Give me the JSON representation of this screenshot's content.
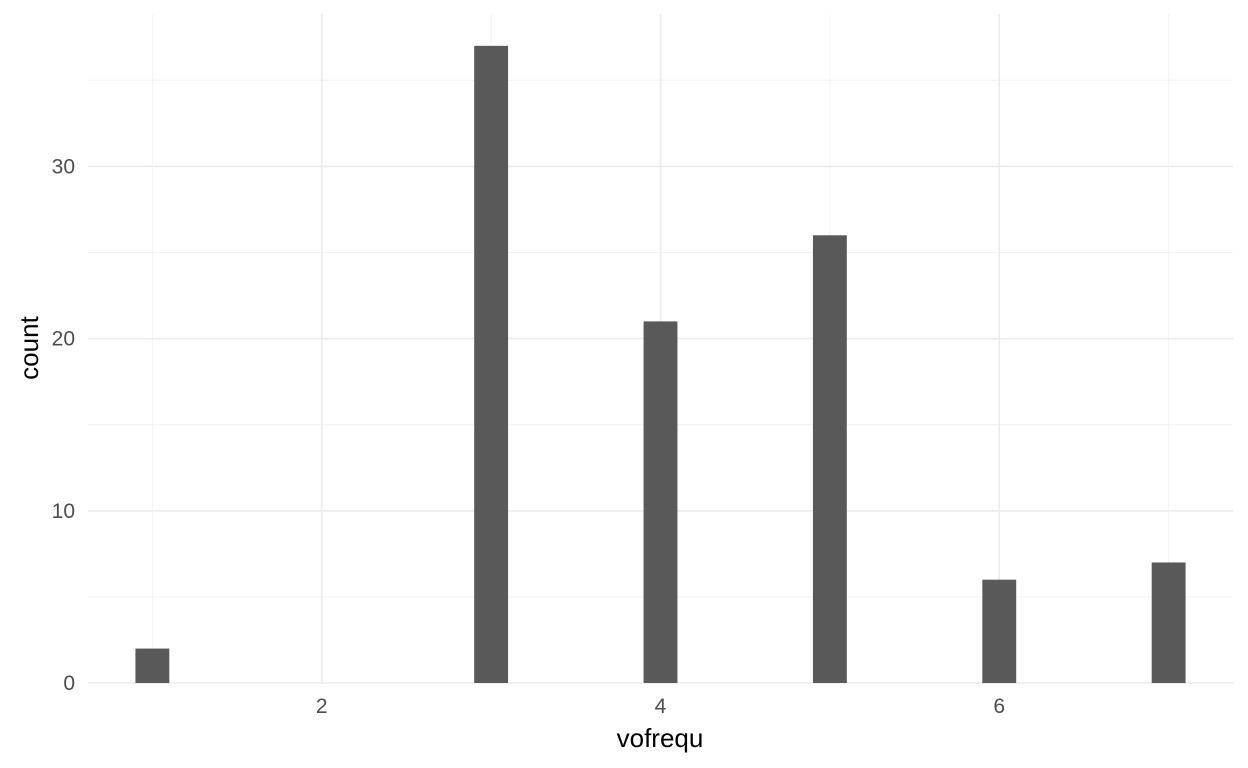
{
  "chart_data": {
    "type": "bar",
    "x": [
      1,
      3,
      4,
      5,
      6,
      7
    ],
    "values": [
      2,
      37,
      21,
      26,
      6,
      7
    ],
    "bar_color": "#595959",
    "xlabel": "vofrequ",
    "ylabel": "count",
    "xlim": [
      0.62,
      7.38
    ],
    "ylim": [
      0,
      38.85
    ],
    "x_ticks": [
      2,
      4,
      6
    ],
    "x_tick_labels": [
      "2",
      "4",
      "6"
    ],
    "x_minor_ticks": [
      1,
      3,
      5,
      7
    ],
    "y_ticks": [
      0,
      10,
      20,
      30
    ],
    "y_tick_labels": [
      "0",
      "10",
      "20",
      "30"
    ],
    "y_minor_ticks": [
      5,
      15,
      25,
      35
    ],
    "grid": true,
    "legend": "none",
    "background": "#ffffff",
    "grid_color": "#ebebeb"
  }
}
